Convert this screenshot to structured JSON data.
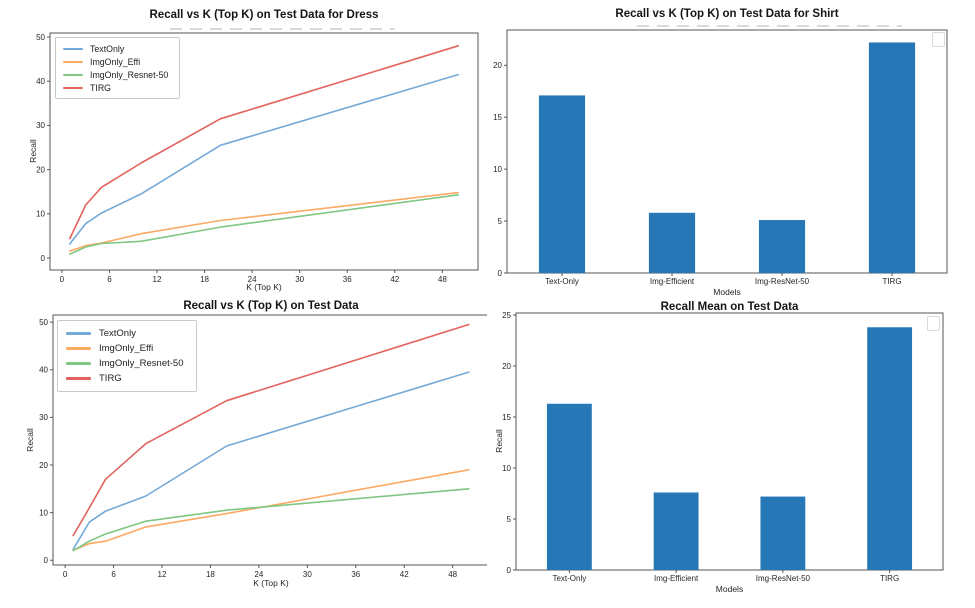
{
  "page": {
    "background": "#ffffff"
  },
  "chart_data": [
    {
      "type": "line",
      "title": "Recall vs K (Top K) on Test Data for Dress",
      "xlabel": "K (Top K)",
      "ylabel": "Recall",
      "x": [
        1,
        3,
        5,
        10,
        20,
        50
      ],
      "xticks": [
        0,
        6,
        12,
        18,
        24,
        30,
        36,
        42,
        48
      ],
      "yticks": [
        0,
        10,
        20,
        30,
        40,
        50
      ],
      "xlim": [
        -1.5,
        52.5
      ],
      "ylim": [
        -2.7,
        50.9
      ],
      "grid": false,
      "legend_position": "upper left",
      "series": [
        {
          "name": "TextOnly",
          "color": "#74a9d8",
          "values": [
            3.2,
            7.8,
            10.2,
            14.5,
            25.5,
            41.5
          ]
        },
        {
          "name": "ImgOnly_Effi",
          "color": "#fbaa64",
          "values": [
            1.6,
            2.8,
            3.4,
            5.5,
            8.5,
            14.8
          ]
        },
        {
          "name": "ImgOnly_Resnet-50",
          "color": "#80c783",
          "values": [
            0.9,
            2.5,
            3.3,
            3.8,
            7.0,
            14.3
          ]
        },
        {
          "name": "TIRG",
          "color": "#e2635e",
          "values": [
            4.4,
            12.0,
            16.0,
            21.5,
            31.5,
            48.0
          ]
        }
      ]
    },
    {
      "type": "bar",
      "title": "Recall vs K (Top K) on Test Data for Shirt",
      "xlabel": "Models",
      "ylabel": "",
      "categories": [
        "Text-Only",
        "Img-Efficient",
        "Img-ResNet-50",
        "TIRG"
      ],
      "values": [
        17.1,
        5.8,
        5.1,
        22.2
      ],
      "yticks": [
        0,
        5,
        10,
        15,
        20
      ],
      "ylim": [
        0,
        23.4
      ],
      "grid": false,
      "bar_color": "#2677b5",
      "empty_legend_box": true
    },
    {
      "type": "line",
      "title": "Recall vs K (Top K) on Test Data",
      "xlabel": "K (Top K)",
      "ylabel": "Recall",
      "x": [
        1,
        3,
        5,
        10,
        20,
        50
      ],
      "xticks": [
        0,
        6,
        12,
        18,
        24,
        30,
        36,
        42,
        48
      ],
      "yticks": [
        0,
        10,
        20,
        30,
        40,
        50
      ],
      "xlim": [
        -1.5,
        52.5
      ],
      "ylim": [
        -1.0,
        51.5
      ],
      "grid": false,
      "legend_position": "upper left",
      "series": [
        {
          "name": "TextOnly",
          "color": "#74a9d8",
          "values": [
            2.3,
            8.0,
            10.3,
            13.5,
            24.0,
            39.5
          ]
        },
        {
          "name": "ImgOnly_Effi",
          "color": "#fbaa64",
          "values": [
            2.1,
            3.5,
            4.0,
            7.0,
            9.8,
            19.0
          ]
        },
        {
          "name": "ImgOnly_Resnet-50",
          "color": "#80c783",
          "values": [
            2.0,
            4.0,
            5.5,
            8.2,
            10.5,
            15.0
          ]
        },
        {
          "name": "TIRG",
          "color": "#e2635e",
          "values": [
            5.2,
            11.0,
            17.0,
            24.5,
            33.5,
            49.5
          ]
        }
      ]
    },
    {
      "type": "bar",
      "title": "Recall Mean on Test Data",
      "xlabel": "Models",
      "ylabel": "Recall",
      "categories": [
        "Text-Only",
        "Img-Efficient",
        "Img-ResNet-50",
        "TIRG"
      ],
      "values": [
        16.3,
        7.6,
        7.2,
        23.8
      ],
      "yticks": [
        0,
        5,
        10,
        15,
        20,
        25
      ],
      "ylim": [
        0,
        25.2
      ],
      "grid": false,
      "bar_color": "#2677b5",
      "empty_legend_box": true
    }
  ]
}
